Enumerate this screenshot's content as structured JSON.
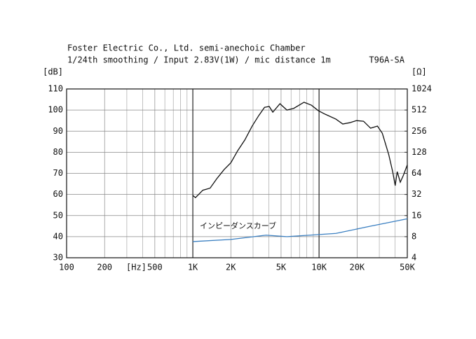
{
  "chart_data": {
    "type": "line",
    "title": "Foster Electric Co., Ltd. semi-anechoic Chamber",
    "subtitle": "1/24th smoothing / Input 2.83V(1W) / mic distance 1m",
    "model": "T96A-SA",
    "y_label": "[dB]",
    "y2_label": "[Ω]",
    "x_label": "[Hz]",
    "annotation": "インピーダンスカーブ",
    "x_log": true,
    "xlim": [
      100,
      50000
    ],
    "xticks": [
      100,
      200,
      500,
      {
        "value": 1000,
        "label": "1K"
      },
      {
        "value": 2000,
        "label": "2K"
      },
      {
        "value": 5000,
        "label": "5K"
      },
      {
        "value": 10000,
        "label": "10K"
      },
      {
        "value": 20000,
        "label": "20K"
      },
      {
        "value": 50000,
        "label": "50K"
      }
    ],
    "minor_xgrid": [
      300,
      400,
      600,
      700,
      800,
      900,
      3000,
      4000,
      6000,
      7000,
      8000,
      9000,
      30000,
      40000
    ],
    "bold_xgrid": [
      1000,
      10000
    ],
    "ylim": [
      30,
      110
    ],
    "yticks": [
      30,
      40,
      50,
      60,
      70,
      80,
      90,
      100,
      110
    ],
    "y2_log": true,
    "y2lim": [
      4,
      1024
    ],
    "y2ticks": [
      4,
      8,
      16,
      32,
      64,
      128,
      256,
      512,
      1024
    ],
    "grid": true,
    "series": [
      {
        "name": "SPL",
        "color": "#111111",
        "x": [
          1000,
          1050,
          1200,
          1370,
          1550,
          1770,
          2000,
          2270,
          2580,
          2950,
          3330,
          3700,
          4030,
          4300,
          4900,
          5560,
          6300,
          7600,
          8700,
          9870,
          11200,
          13600,
          15400,
          17500,
          19800,
          22500,
          25600,
          29000,
          31700,
          35600,
          38300,
          40100,
          41600,
          44000,
          46500,
          50000
        ],
        "values": [
          59.5,
          58.5,
          62,
          63,
          67.5,
          71.8,
          75,
          80.8,
          85.8,
          92.4,
          97.4,
          101.3,
          101.7,
          99,
          103,
          100,
          100.8,
          103.7,
          102.3,
          99.7,
          98,
          95.7,
          93.4,
          94,
          95,
          94.7,
          91.4,
          92.4,
          89,
          79,
          70.8,
          64.2,
          70.8,
          65.8,
          69,
          74
        ]
      },
      {
        "name": "Impedance",
        "color": "#3a7fc1",
        "axis": "y2",
        "x": [
          1000,
          2000,
          3800,
          5560,
          9300,
          13600,
          25600,
          50000
        ],
        "values": [
          6.8,
          7.3,
          8.4,
          8.0,
          8.5,
          8.9,
          11.3,
          14.4
        ]
      }
    ]
  }
}
